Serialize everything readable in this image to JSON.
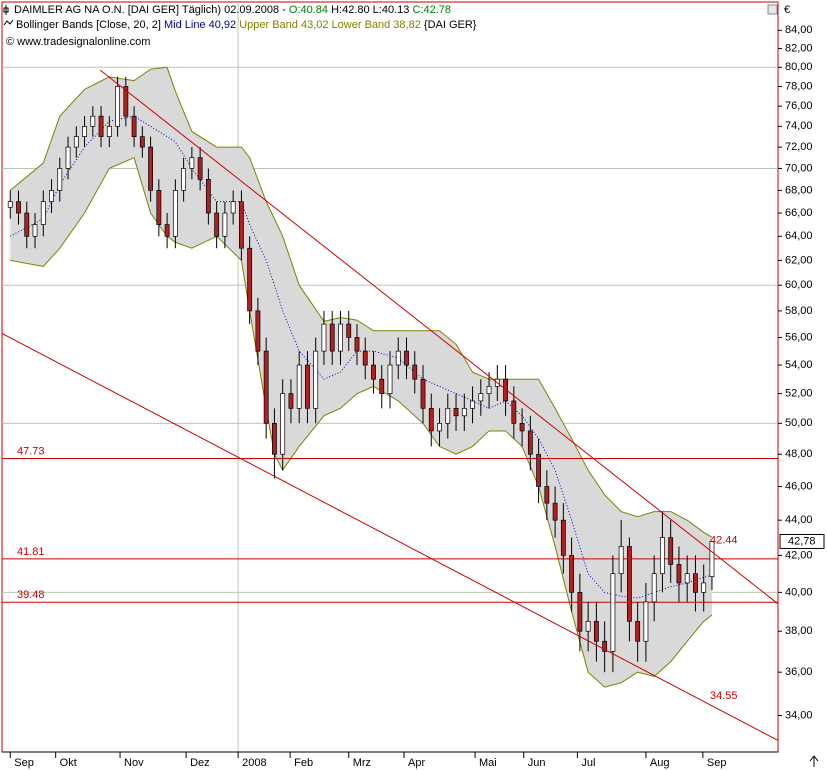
{
  "chart_data": {
    "type": "candlestick",
    "title_parts": [
      {
        "text": "DAIMLER AG NA O.N. [DAI GER]  Täglich) 02.09.2008 - ",
        "color": "#000000"
      },
      {
        "text": "O:40.84",
        "color": "#008000"
      },
      {
        "text": " H:42.80 L:40.13 ",
        "color": "#000000"
      },
      {
        "text": "C:42.78",
        "color": "#008000"
      }
    ],
    "indicator_parts": [
      {
        "text": "Bollinger Bands [Close, 20, 2] ",
        "color": "#000000"
      },
      {
        "text": "Mid Line 40,92 ",
        "color": "#000099"
      },
      {
        "text": "Upper Band 43,02 Lower Band 38,82 ",
        "color": "#808000"
      },
      {
        "text": "{DAI GER}",
        "color": "#000000"
      }
    ],
    "source": "© www.tradesignalonline.com",
    "y_axis_unit": "€",
    "log_scale": true,
    "xlim": [
      -1,
      93
    ],
    "ylim": [
      32.4,
      87.2
    ],
    "xticks": [
      {
        "value": 0,
        "label": "Sep"
      },
      {
        "value": 5.5,
        "label": "Okt"
      },
      {
        "value": 13.3,
        "label": "Nov"
      },
      {
        "value": 21.3,
        "label": "Dez"
      },
      {
        "value": 27.6,
        "label": "2008"
      },
      {
        "value": 33.9,
        "label": "Feb"
      },
      {
        "value": 41.0,
        "label": "Mrz"
      },
      {
        "value": 47.7,
        "label": "Apr"
      },
      {
        "value": 56.3,
        "label": "Mai"
      },
      {
        "value": 62.2,
        "label": "Jun"
      },
      {
        "value": 68.7,
        "label": "Jul"
      },
      {
        "value": 77.0,
        "label": "Aug"
      },
      {
        "value": 83.9,
        "label": "Sep"
      }
    ],
    "xgrid": [
      27.6
    ],
    "yticks": [
      {
        "value": 84,
        "label": "84,00"
      },
      {
        "value": 82,
        "label": "82,00"
      },
      {
        "value": 80,
        "label": "80,00"
      },
      {
        "value": 78,
        "label": "78,00"
      },
      {
        "value": 76,
        "label": "76,00"
      },
      {
        "value": 74,
        "label": "74,00"
      },
      {
        "value": 72,
        "label": "72,00"
      },
      {
        "value": 70,
        "label": "70,00"
      },
      {
        "value": 68,
        "label": "68,00"
      },
      {
        "value": 66,
        "label": "66,00"
      },
      {
        "value": 64,
        "label": "64,00"
      },
      {
        "value": 62,
        "label": "62,00"
      },
      {
        "value": 60,
        "label": "60,00"
      },
      {
        "value": 58,
        "label": "58,00"
      },
      {
        "value": 56,
        "label": "56,00"
      },
      {
        "value": 54,
        "label": "54,00"
      },
      {
        "value": 52,
        "label": "52,00"
      },
      {
        "value": 50,
        "label": "50,00"
      },
      {
        "value": 48,
        "label": "48,00"
      },
      {
        "value": 46,
        "label": "46,00"
      },
      {
        "value": 44,
        "label": "44,00"
      },
      {
        "value": 42,
        "label": "42,00"
      },
      {
        "value": 40,
        "label": "40,00"
      },
      {
        "value": 38,
        "label": "38,00"
      },
      {
        "value": 36,
        "label": "36,00"
      },
      {
        "value": 34,
        "label": "34,00"
      }
    ],
    "ygrid": [
      80,
      70,
      60,
      50,
      40
    ],
    "candles": {
      "up_color": "#ffffff",
      "down_color": "#b02020",
      "wick_color": "#000000",
      "open": [
        66.5,
        67,
        66,
        64,
        65,
        67,
        68,
        70,
        72,
        73,
        74,
        75,
        73,
        74,
        78,
        75,
        73,
        72,
        68,
        65,
        64,
        68,
        70,
        71,
        69,
        66,
        64,
        66,
        67,
        63,
        58,
        55,
        50,
        48,
        52,
        51,
        54,
        51,
        55,
        57,
        55,
        57,
        56,
        55,
        54,
        53,
        52,
        54,
        55,
        54,
        53,
        51,
        49.5,
        50,
        51,
        50.5,
        51,
        51.5,
        52,
        52.5,
        53,
        51.5,
        50,
        49.5,
        48,
        46,
        45,
        44,
        42,
        40,
        38,
        38.5,
        37.5,
        37,
        41,
        42.5,
        38.5,
        37.5,
        39.5,
        41,
        43,
        41.5,
        40.5,
        41,
        40,
        40.84
      ],
      "high": [
        68,
        68,
        67,
        66,
        68,
        69,
        71,
        73,
        74,
        75,
        76,
        76,
        75,
        79,
        79,
        76,
        74,
        73,
        69,
        66,
        69,
        71,
        72,
        72,
        70,
        67,
        67,
        68,
        68,
        64,
        59,
        56,
        51,
        53,
        53,
        55,
        55,
        56,
        58,
        58,
        58,
        58,
        57,
        56,
        55,
        54,
        55,
        56,
        56,
        55,
        54,
        52,
        51,
        52,
        52,
        52,
        52.5,
        53,
        53.5,
        54,
        54,
        52.5,
        51,
        50.5,
        49,
        47,
        46,
        45,
        43,
        41,
        39.5,
        39.5,
        38.5,
        42,
        44,
        43,
        39.5,
        40.5,
        42,
        44.5,
        44,
        42.5,
        42,
        42,
        41.5,
        42.8
      ],
      "low": [
        65.5,
        65,
        63,
        63,
        64,
        66,
        67,
        69,
        71,
        72,
        73,
        72,
        72,
        73,
        74,
        72,
        71,
        67,
        64,
        63,
        63,
        67,
        69,
        68,
        65,
        63,
        63,
        65,
        62,
        57,
        54,
        49,
        46.5,
        47,
        50,
        50,
        50,
        50,
        54,
        54,
        54,
        55,
        54,
        53,
        52,
        51,
        51,
        53,
        53,
        52,
        50,
        48.5,
        48.5,
        49,
        49.5,
        49.5,
        50,
        50.5,
        51,
        51.5,
        50.5,
        49,
        48.5,
        47,
        45,
        44,
        43,
        41,
        39,
        37,
        37,
        36.5,
        36,
        36,
        40,
        37.5,
        36.5,
        36.5,
        38.5,
        40,
        40.5,
        39.5,
        39.5,
        39,
        39,
        40.13
      ],
      "close": [
        67,
        66,
        64,
        65,
        67,
        68,
        70,
        72,
        73,
        74,
        75,
        73,
        74,
        78,
        75,
        73,
        72,
        68,
        65,
        64,
        68,
        70,
        71,
        69,
        66,
        64,
        66,
        67,
        63,
        58,
        55,
        50,
        48,
        52,
        51,
        54,
        51,
        55,
        57,
        55,
        57,
        56,
        55,
        54,
        53,
        52,
        54,
        55,
        54,
        53,
        51,
        49.5,
        50,
        51,
        50.5,
        51,
        51.5,
        52,
        52.5,
        53,
        51.5,
        50,
        49.5,
        48,
        46,
        45,
        44,
        42,
        40,
        38,
        38.5,
        37.5,
        37,
        41,
        42.5,
        38.5,
        37.5,
        39.5,
        41,
        43,
        41.5,
        40.5,
        41,
        40,
        40.5,
        42.78
      ]
    },
    "bands": {
      "fill": "#d9d9d9",
      "band_color": "#808000",
      "mid_color": "#0000cc",
      "x": [
        0,
        4,
        6,
        9,
        12,
        15,
        17,
        19,
        20,
        22,
        25,
        28,
        29,
        31,
        32,
        33,
        35,
        38,
        40,
        42,
        44,
        47,
        50,
        52,
        54,
        56,
        58,
        60,
        62,
        64,
        66,
        68,
        70,
        72,
        74,
        76,
        78,
        80,
        82,
        84,
        85
      ],
      "upper": [
        68,
        70.5,
        75,
        77.7,
        79,
        78.6,
        79.8,
        80,
        77.5,
        73.5,
        72,
        72,
        71,
        67,
        65.5,
        64,
        60,
        57.2,
        57.5,
        57.3,
        56.5,
        56.5,
        56.5,
        56.5,
        55.5,
        53.5,
        53,
        53,
        53,
        53,
        51,
        49,
        47,
        45.5,
        44.5,
        44.2,
        44.5,
        44.5,
        44,
        43.3,
        43.02
      ],
      "mid": [
        64,
        65.5,
        68.5,
        72,
        74.5,
        75,
        74,
        73,
        72.5,
        70,
        67,
        67,
        65,
        62,
        60,
        58,
        55,
        53,
        53.5,
        55,
        55,
        54.5,
        53,
        52.5,
        52,
        51.5,
        51,
        51.5,
        50.5,
        49,
        47,
        44,
        41,
        40,
        39.8,
        39.7,
        40,
        40.3,
        40.5,
        40.8,
        40.92
      ],
      "lower": [
        62,
        61.5,
        63,
        66,
        70,
        71,
        66,
        64,
        63.5,
        63,
        64,
        62,
        58,
        51,
        48,
        47,
        48.5,
        50.5,
        51,
        52,
        52.5,
        51.5,
        50,
        48.5,
        48,
        48.5,
        49.5,
        49.5,
        48.5,
        46,
        42.5,
        39,
        36,
        35.3,
        35.5,
        36,
        35.8,
        36.5,
        37.5,
        38.5,
        38.82
      ]
    },
    "hlines": [
      {
        "value": 47.73,
        "color": "#cc0000"
      },
      {
        "value": 41.81,
        "color": "#cc0000"
      },
      {
        "value": 39.48,
        "color": "#cc0000"
      }
    ],
    "trendlines": [
      {
        "x": [
          10.9,
          93
        ],
        "values": [
          79.7,
          39.4
        ],
        "label": 42.44,
        "color": "#cc0000"
      },
      {
        "x": [
          -1,
          93
        ],
        "values": [
          56.3,
          32.9
        ],
        "label": 34.55,
        "color": "#cc0000"
      }
    ],
    "last_price": {
      "value": 42.78,
      "label": "42,78"
    }
  }
}
